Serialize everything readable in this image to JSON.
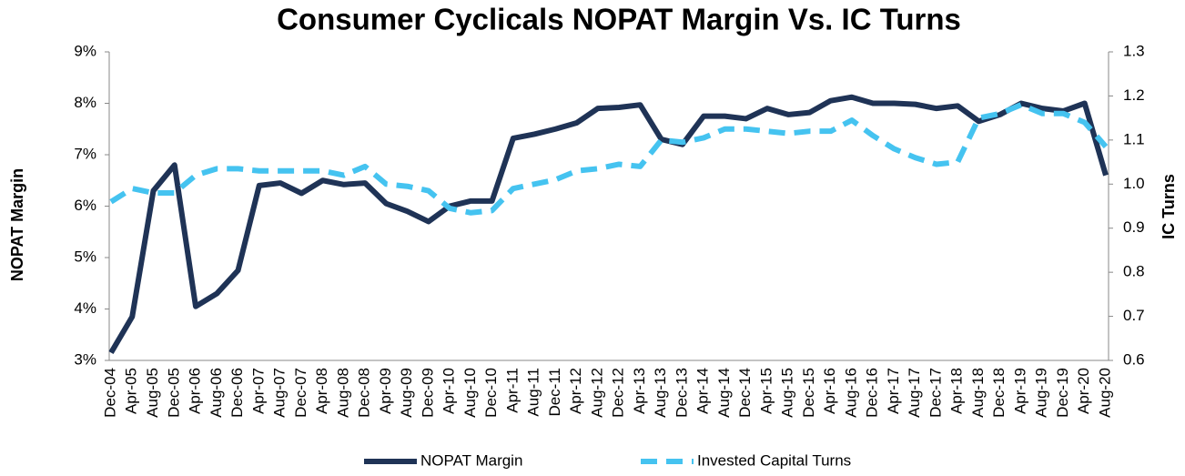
{
  "chart_data": {
    "type": "line",
    "title": "Consumer Cyclicals NOPAT Margin Vs. IC Turns",
    "ylabel": "NOPAT Margin",
    "y2label": "IC Turns",
    "categories": [
      "Dec-04",
      "Apr-05",
      "Aug-05",
      "Dec-05",
      "Apr-06",
      "Aug-06",
      "Dec-06",
      "Apr-07",
      "Aug-07",
      "Dec-07",
      "Apr-08",
      "Aug-08",
      "Dec-08",
      "Apr-09",
      "Aug-09",
      "Dec-09",
      "Apr-10",
      "Aug-10",
      "Dec-10",
      "Apr-11",
      "Aug-11",
      "Dec-11",
      "Apr-12",
      "Aug-12",
      "Dec-12",
      "Apr-13",
      "Aug-13",
      "Dec-13",
      "Apr-14",
      "Aug-14",
      "Dec-14",
      "Apr-15",
      "Aug-15",
      "Dec-15",
      "Apr-16",
      "Aug-16",
      "Dec-16",
      "Apr-17",
      "Aug-17",
      "Dec-17",
      "Apr-18",
      "Aug-18",
      "Dec-18",
      "Apr-19",
      "Aug-19",
      "Dec-19",
      "Apr-20",
      "Aug-20"
    ],
    "series": [
      {
        "name": "NOPAT Margin",
        "color": "#1f3356",
        "dash": false,
        "axis": "y",
        "values": [
          3.15,
          3.85,
          6.3,
          6.8,
          4.05,
          4.3,
          4.75,
          6.4,
          6.45,
          6.25,
          6.5,
          6.42,
          6.45,
          6.05,
          5.9,
          5.7,
          6.0,
          6.1,
          6.1,
          7.32,
          7.4,
          7.5,
          7.62,
          7.9,
          7.92,
          7.97,
          7.3,
          7.2,
          7.75,
          7.75,
          7.7,
          7.9,
          7.78,
          7.82,
          8.05,
          8.12,
          8.0,
          8.0,
          7.98,
          7.9,
          7.95,
          7.65,
          7.78,
          8.0,
          7.9,
          7.85,
          8.0,
          6.6
        ]
      },
      {
        "name": "Invested Capital Turns",
        "color": "#45c3f0",
        "dash": true,
        "axis": "y2",
        "values": [
          0.96,
          0.99,
          0.98,
          0.98,
          1.02,
          1.035,
          1.035,
          1.03,
          1.03,
          1.03,
          1.03,
          1.02,
          1.04,
          1.0,
          0.995,
          0.985,
          0.945,
          0.935,
          0.94,
          0.99,
          1.0,
          1.01,
          1.03,
          1.035,
          1.045,
          1.04,
          1.1,
          1.095,
          1.105,
          1.125,
          1.125,
          1.12,
          1.115,
          1.12,
          1.12,
          1.145,
          1.11,
          1.08,
          1.06,
          1.045,
          1.05,
          1.15,
          1.16,
          1.18,
          1.16,
          1.16,
          1.14,
          1.085
        ]
      }
    ],
    "ylim": [
      3,
      9
    ],
    "yticks": [
      {
        "value": 3,
        "label": "3%"
      },
      {
        "value": 4,
        "label": "4%"
      },
      {
        "value": 5,
        "label": "5%"
      },
      {
        "value": 6,
        "label": "6%"
      },
      {
        "value": 7,
        "label": "7%"
      },
      {
        "value": 8,
        "label": "8%"
      },
      {
        "value": 9,
        "label": "9%"
      }
    ],
    "y2lim": [
      0.6,
      1.3
    ],
    "y2ticks": [
      0.6,
      0.7,
      0.8,
      0.9,
      {
        "value": 1,
        "label": "1.0"
      },
      1.1,
      1.2,
      1.3
    ],
    "grid": false,
    "legend": "bottom"
  }
}
